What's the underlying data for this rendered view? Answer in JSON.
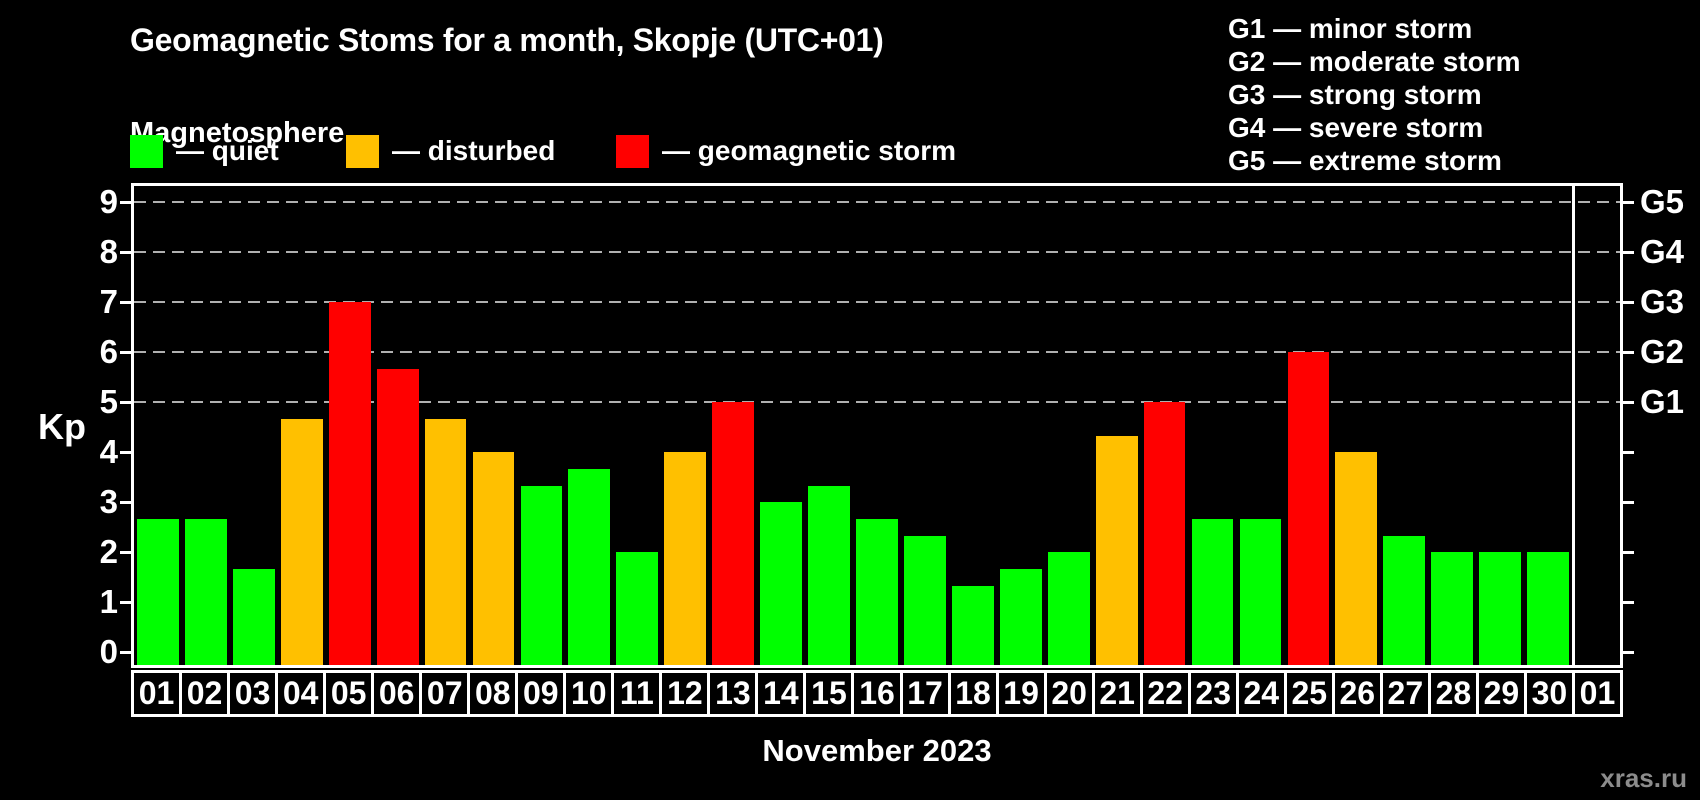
{
  "title": "Geomagnetic Stoms for a month, Skopje (UTC+01)",
  "subtitle": "Magnetosphere",
  "legend": {
    "items": [
      {
        "key": "quiet",
        "label": "— quiet",
        "color": "#00ff00"
      },
      {
        "key": "disturbed",
        "label": "— disturbed",
        "color": "#ffc000"
      },
      {
        "key": "storm",
        "label": "— geomagnetic storm",
        "color": "#ff0000"
      }
    ]
  },
  "storm_scale": [
    "G1 — minor storm",
    "G2 — moderate storm",
    "G3 — strong storm",
    "G4 — severe storm",
    "G5 — extreme storm"
  ],
  "watermark": "xras.ru",
  "chart_data": {
    "type": "bar",
    "title": "Geomagnetic Stoms for a month, Skopje (UTC+01)",
    "ylabel": "Kp",
    "xlabel": "November 2023",
    "ylim": [
      0,
      9
    ],
    "yticks": [
      0,
      1,
      2,
      3,
      4,
      5,
      6,
      7,
      8,
      9
    ],
    "gridlines_at": [
      5,
      6,
      7,
      8,
      9
    ],
    "grid_color": "#b0b0b0",
    "legend_position": "top",
    "right_axis": [
      {
        "kp": 5,
        "label": "G1"
      },
      {
        "kp": 6,
        "label": "G2"
      },
      {
        "kp": 7,
        "label": "G3"
      },
      {
        "kp": 8,
        "label": "G4"
      },
      {
        "kp": 9,
        "label": "G5"
      }
    ],
    "categories": [
      "01",
      "02",
      "03",
      "04",
      "05",
      "06",
      "07",
      "08",
      "09",
      "10",
      "11",
      "12",
      "13",
      "14",
      "15",
      "16",
      "17",
      "18",
      "19",
      "20",
      "21",
      "22",
      "23",
      "24",
      "25",
      "26",
      "27",
      "28",
      "29",
      "30",
      "01"
    ],
    "values": [
      2.67,
      2.67,
      1.67,
      4.67,
      7,
      5.67,
      4.67,
      4,
      3.33,
      3.67,
      2,
      4,
      5,
      3,
      3.33,
      2.67,
      2.33,
      1.33,
      1.67,
      2,
      4.33,
      5,
      2.67,
      2.67,
      6,
      4,
      2.33,
      2,
      2,
      2,
      null
    ],
    "statuses": [
      "quiet",
      "quiet",
      "quiet",
      "disturbed",
      "storm",
      "storm",
      "disturbed",
      "disturbed",
      "quiet",
      "quiet",
      "quiet",
      "disturbed",
      "storm",
      "quiet",
      "quiet",
      "quiet",
      "quiet",
      "quiet",
      "quiet",
      "quiet",
      "disturbed",
      "storm",
      "quiet",
      "quiet",
      "storm",
      "disturbed",
      "quiet",
      "quiet",
      "quiet",
      "quiet",
      null
    ],
    "status_colors": {
      "quiet": "#00ff00",
      "disturbed": "#ffc000",
      "storm": "#ff0000"
    }
  }
}
